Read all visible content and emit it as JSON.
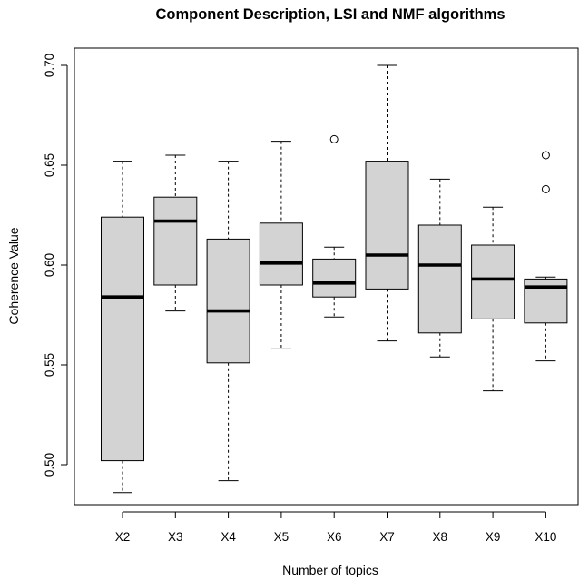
{
  "chart_data": {
    "type": "box",
    "title": "Component Description, LSI and NMF algorithms",
    "xlabel": "Number of topics",
    "ylabel": "Coherence Value",
    "ylim": [
      0.48,
      0.705
    ],
    "yticks": [
      "0.50",
      "0.55",
      "0.60",
      "0.65",
      "0.70"
    ],
    "ytick_values": [
      0.5,
      0.55,
      0.6,
      0.65,
      0.7
    ],
    "grid": false,
    "box_fill": "#d3d3d3",
    "categories": [
      "X2",
      "X3",
      "X4",
      "X5",
      "X6",
      "X7",
      "X8",
      "X9",
      "X10"
    ],
    "boxes": [
      {
        "min": 0.486,
        "q1": 0.502,
        "median": 0.584,
        "q3": 0.624,
        "max": 0.652,
        "outliers": []
      },
      {
        "min": 0.577,
        "q1": 0.59,
        "median": 0.622,
        "q3": 0.634,
        "max": 0.655,
        "outliers": []
      },
      {
        "min": 0.492,
        "q1": 0.551,
        "median": 0.577,
        "q3": 0.613,
        "max": 0.652,
        "outliers": []
      },
      {
        "min": 0.558,
        "q1": 0.59,
        "median": 0.601,
        "q3": 0.621,
        "max": 0.662,
        "outliers": []
      },
      {
        "min": 0.574,
        "q1": 0.584,
        "median": 0.591,
        "q3": 0.603,
        "max": 0.609,
        "outliers": [
          0.663
        ]
      },
      {
        "min": 0.562,
        "q1": 0.588,
        "median": 0.605,
        "q3": 0.652,
        "max": 0.7,
        "outliers": []
      },
      {
        "min": 0.554,
        "q1": 0.566,
        "median": 0.6,
        "q3": 0.62,
        "max": 0.643,
        "outliers": []
      },
      {
        "min": 0.537,
        "q1": 0.573,
        "median": 0.593,
        "q3": 0.61,
        "max": 0.629,
        "outliers": []
      },
      {
        "min": 0.552,
        "q1": 0.571,
        "median": 0.589,
        "q3": 0.593,
        "max": 0.594,
        "outliers": [
          0.638,
          0.655
        ]
      }
    ]
  }
}
